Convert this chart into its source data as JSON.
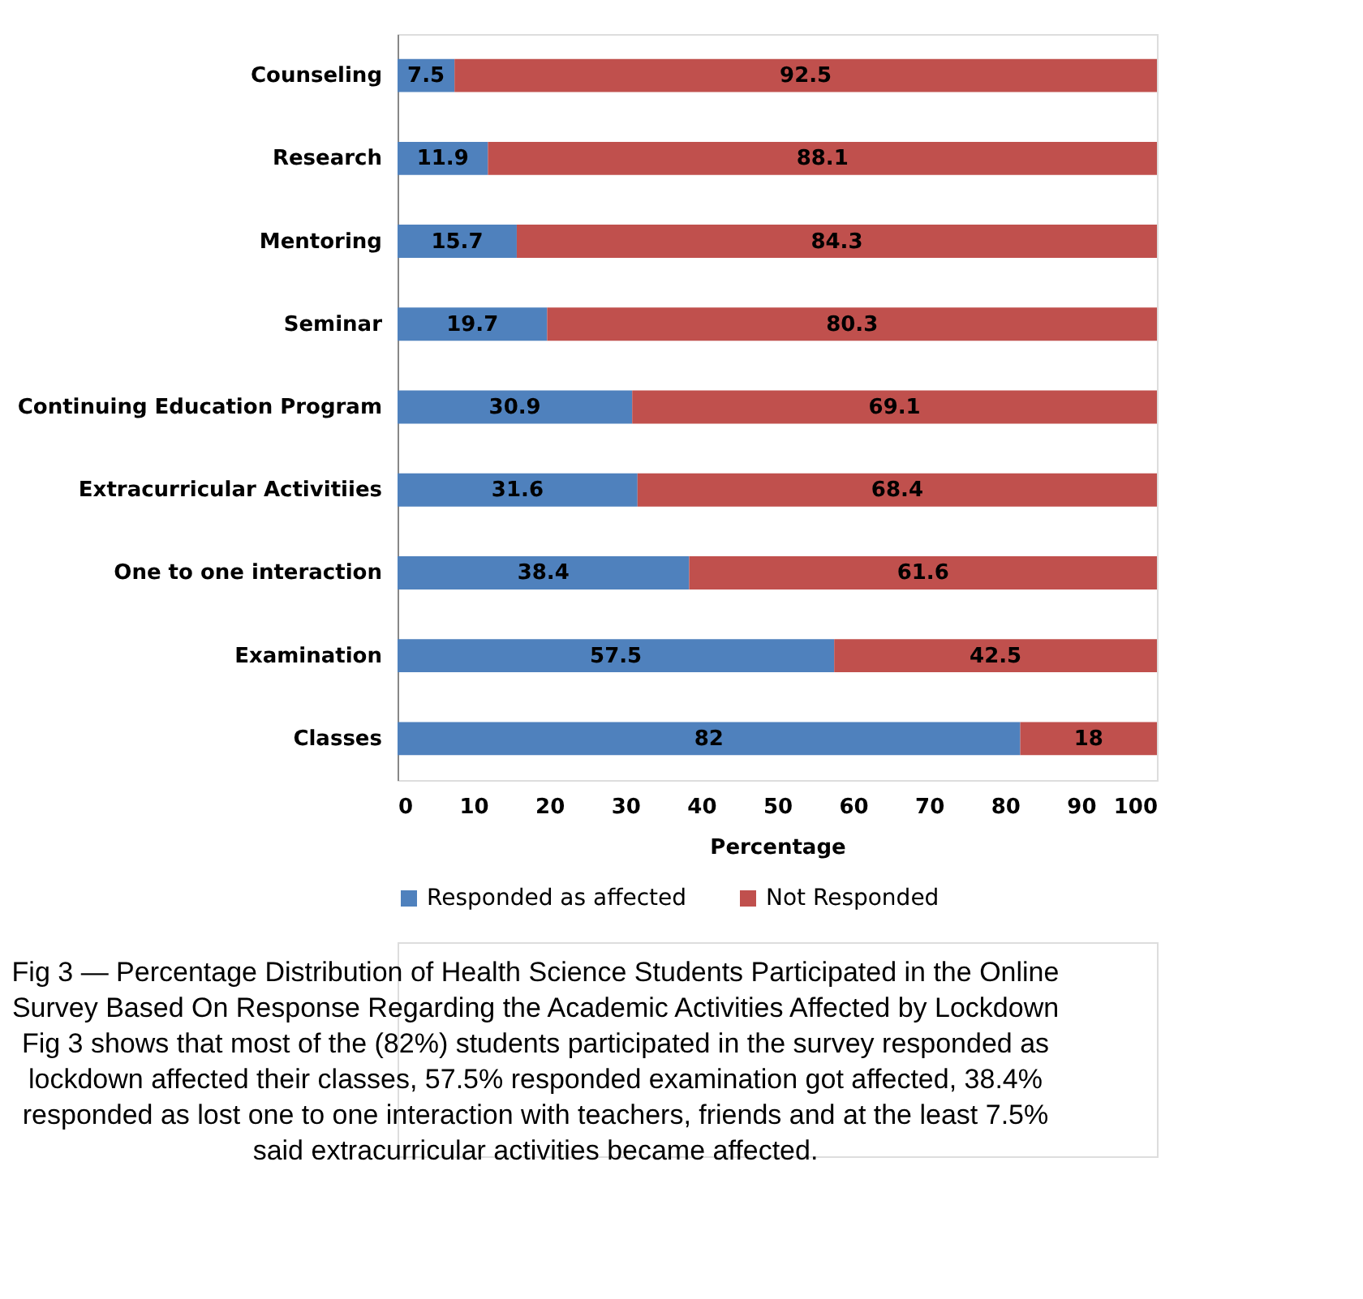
{
  "chart_data": {
    "type": "bar",
    "orientation": "horizontal",
    "stacked": true,
    "data_labels": true,
    "xlabel": "Percentage",
    "xlim": [
      0,
      100
    ],
    "xticks": [
      0,
      10,
      20,
      30,
      40,
      50,
      60,
      70,
      80,
      90,
      100
    ],
    "grid": false,
    "legend": "bottom",
    "categories": [
      "Counseling",
      "Research",
      "Mentoring",
      "Seminar",
      "Continuing Education Program",
      "Extracurricular Activitiies",
      "One to one interaction",
      "Examination",
      "Classes"
    ],
    "series": [
      {
        "name": "Responded as affected",
        "color": "#4f81bd",
        "values": [
          7.5,
          11.9,
          15.7,
          19.7,
          30.9,
          31.6,
          38.4,
          57.5,
          82
        ]
      },
      {
        "name": "Not Responded",
        "color": "#c0504d",
        "values": [
          92.5,
          88.1,
          84.3,
          80.3,
          69.1,
          68.4,
          61.6,
          42.5,
          18
        ]
      }
    ],
    "annotations": [
      "Fig 3 — Percentage Distribution of Health Science Students Participated in the Online Survey Based On Response Regarding the Academic Activities Affected by Lockdown",
      "Fig 3 shows that most of the (82%) students participated in the survey responded as lockdown affected their classes, 57.5% responded examination got affected, 38.4% responded as lost one to one interaction with teachers, friends and at the least 7.5% said extracurricular activities became affected."
    ]
  }
}
